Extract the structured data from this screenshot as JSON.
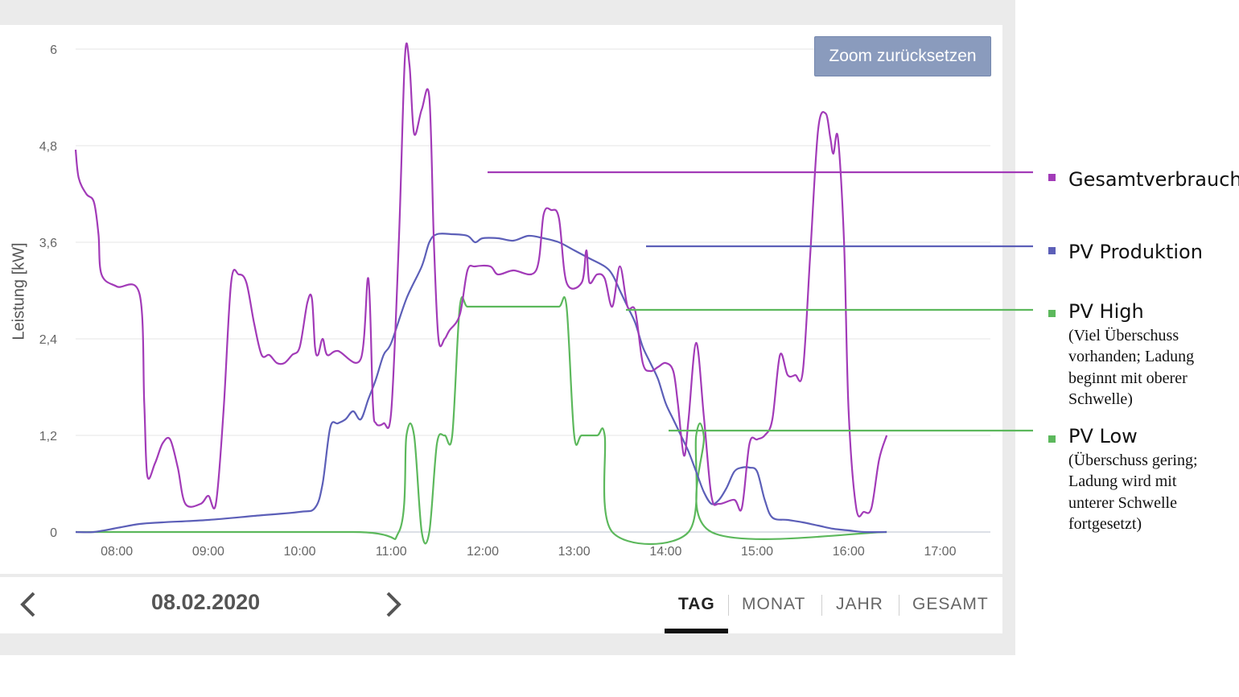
{
  "chart_data": {
    "type": "line",
    "ylabel": "Leistung [kW]",
    "xlabel": "",
    "ylim": [
      0,
      6
    ],
    "xlim": [
      "07:33",
      "17:33"
    ],
    "y_ticks": [
      "0",
      "1,2",
      "2,4",
      "3,6",
      "4,8",
      "6"
    ],
    "y_tick_values": [
      0,
      1.2,
      2.4,
      3.6,
      4.8,
      6.0
    ],
    "x_ticks": [
      "08:00",
      "09:00",
      "10:00",
      "11:00",
      "12:00",
      "13:00",
      "14:00",
      "15:00",
      "16:00",
      "17:00"
    ],
    "grid": true,
    "series": [
      {
        "name": "Gesamtverbrauch",
        "color": "#a23bb8",
        "points": [
          [
            "07:33",
            4.75
          ],
          [
            "07:35",
            4.4
          ],
          [
            "07:40",
            4.2
          ],
          [
            "07:45",
            4.1
          ],
          [
            "07:48",
            3.7
          ],
          [
            "07:50",
            3.2
          ],
          [
            "08:00",
            3.05
          ],
          [
            "08:15",
            2.95
          ],
          [
            "08:18",
            1.6
          ],
          [
            "08:20",
            0.7
          ],
          [
            "08:25",
            0.85
          ],
          [
            "08:30",
            1.1
          ],
          [
            "08:35",
            1.15
          ],
          [
            "08:40",
            0.8
          ],
          [
            "08:45",
            0.35
          ],
          [
            "08:55",
            0.35
          ],
          [
            "09:00",
            0.45
          ],
          [
            "09:05",
            0.35
          ],
          [
            "09:10",
            1.5
          ],
          [
            "09:15",
            3.1
          ],
          [
            "09:20",
            3.2
          ],
          [
            "09:25",
            3.1
          ],
          [
            "09:30",
            2.6
          ],
          [
            "09:35",
            2.2
          ],
          [
            "09:40",
            2.2
          ],
          [
            "09:45",
            2.1
          ],
          [
            "09:50",
            2.1
          ],
          [
            "09:55",
            2.2
          ],
          [
            "10:00",
            2.3
          ],
          [
            "10:05",
            2.85
          ],
          [
            "10:08",
            2.9
          ],
          [
            "10:10",
            2.3
          ],
          [
            "10:12",
            2.2
          ],
          [
            "10:15",
            2.4
          ],
          [
            "10:18",
            2.2
          ],
          [
            "10:25",
            2.25
          ],
          [
            "10:40",
            2.15
          ],
          [
            "10:45",
            3.15
          ],
          [
            "10:48",
            1.6
          ],
          [
            "10:50",
            1.35
          ],
          [
            "10:55",
            1.35
          ],
          [
            "11:00",
            1.5
          ],
          [
            "11:05",
            3.6
          ],
          [
            "11:09",
            5.9
          ],
          [
            "11:12",
            5.8
          ],
          [
            "11:15",
            4.95
          ],
          [
            "11:20",
            5.25
          ],
          [
            "11:25",
            5.4
          ],
          [
            "11:28",
            3.6
          ],
          [
            "11:31",
            2.4
          ],
          [
            "11:35",
            2.4
          ],
          [
            "11:38",
            2.5
          ],
          [
            "11:45",
            2.7
          ],
          [
            "11:50",
            3.25
          ],
          [
            "11:55",
            3.3
          ],
          [
            "12:05",
            3.3
          ],
          [
            "12:10",
            3.2
          ],
          [
            "12:20",
            3.25
          ],
          [
            "12:35",
            3.25
          ],
          [
            "12:40",
            3.95
          ],
          [
            "12:45",
            4.0
          ],
          [
            "12:50",
            3.9
          ],
          [
            "12:55",
            3.1
          ],
          [
            "13:05",
            3.1
          ],
          [
            "13:08",
            3.5
          ],
          [
            "13:10",
            3.1
          ],
          [
            "13:15",
            3.2
          ],
          [
            "13:20",
            3.15
          ],
          [
            "13:25",
            2.8
          ],
          [
            "13:30",
            3.3
          ],
          [
            "13:35",
            2.8
          ],
          [
            "13:40",
            2.75
          ],
          [
            "13:45",
            2.1
          ],
          [
            "13:50",
            2.0
          ],
          [
            "13:55",
            2.05
          ],
          [
            "14:00",
            2.1
          ],
          [
            "14:05",
            2.0
          ],
          [
            "14:08",
            1.6
          ],
          [
            "14:12",
            0.95
          ],
          [
            "14:15",
            1.4
          ],
          [
            "14:20",
            2.35
          ],
          [
            "14:25",
            1.45
          ],
          [
            "14:30",
            0.45
          ],
          [
            "14:35",
            0.35
          ],
          [
            "14:45",
            0.4
          ],
          [
            "14:50",
            0.3
          ],
          [
            "14:55",
            1.1
          ],
          [
            "15:00",
            1.15
          ],
          [
            "15:05",
            1.2
          ],
          [
            "15:10",
            1.4
          ],
          [
            "15:15",
            2.2
          ],
          [
            "15:20",
            1.95
          ],
          [
            "15:25",
            1.95
          ],
          [
            "15:30",
            2.0
          ],
          [
            "15:35",
            3.5
          ],
          [
            "15:40",
            5.0
          ],
          [
            "15:45",
            5.2
          ],
          [
            "15:48",
            4.9
          ],
          [
            "15:50",
            4.7
          ],
          [
            "15:53",
            4.9
          ],
          [
            "15:57",
            3.6
          ],
          [
            "16:00",
            1.5
          ],
          [
            "16:05",
            0.3
          ],
          [
            "16:10",
            0.25
          ],
          [
            "16:15",
            0.3
          ],
          [
            "16:20",
            0.9
          ],
          [
            "16:25",
            1.2
          ]
        ]
      },
      {
        "name": "PV Produktion",
        "color": "#5c5fb8",
        "points": [
          [
            "07:33",
            0
          ],
          [
            "07:45",
            0
          ],
          [
            "08:00",
            0.05
          ],
          [
            "08:15",
            0.1
          ],
          [
            "08:30",
            0.12
          ],
          [
            "09:00",
            0.15
          ],
          [
            "09:30",
            0.2
          ],
          [
            "10:00",
            0.25
          ],
          [
            "10:10",
            0.3
          ],
          [
            "10:15",
            0.6
          ],
          [
            "10:20",
            1.3
          ],
          [
            "10:25",
            1.35
          ],
          [
            "10:30",
            1.4
          ],
          [
            "10:35",
            1.5
          ],
          [
            "10:40",
            1.4
          ],
          [
            "10:45",
            1.65
          ],
          [
            "10:50",
            1.9
          ],
          [
            "10:55",
            2.2
          ],
          [
            "11:00",
            2.35
          ],
          [
            "11:10",
            2.9
          ],
          [
            "11:20",
            3.3
          ],
          [
            "11:25",
            3.6
          ],
          [
            "11:30",
            3.7
          ],
          [
            "11:40",
            3.7
          ],
          [
            "11:50",
            3.68
          ],
          [
            "11:55",
            3.6
          ],
          [
            "12:00",
            3.65
          ],
          [
            "12:10",
            3.65
          ],
          [
            "12:20",
            3.62
          ],
          [
            "12:30",
            3.68
          ],
          [
            "12:40",
            3.65
          ],
          [
            "12:50",
            3.6
          ],
          [
            "13:00",
            3.5
          ],
          [
            "13:10",
            3.4
          ],
          [
            "13:20",
            3.3
          ],
          [
            "13:25",
            3.2
          ],
          [
            "13:30",
            3.0
          ],
          [
            "13:35",
            2.8
          ],
          [
            "13:40",
            2.6
          ],
          [
            "13:45",
            2.3
          ],
          [
            "13:50",
            2.1
          ],
          [
            "13:55",
            1.9
          ],
          [
            "14:00",
            1.6
          ],
          [
            "14:05",
            1.4
          ],
          [
            "14:10",
            1.2
          ],
          [
            "14:15",
            1.0
          ],
          [
            "14:20",
            0.75
          ],
          [
            "14:25",
            0.5
          ],
          [
            "14:30",
            0.35
          ],
          [
            "14:35",
            0.4
          ],
          [
            "14:40",
            0.55
          ],
          [
            "14:45",
            0.75
          ],
          [
            "14:50",
            0.8
          ],
          [
            "14:55",
            0.8
          ],
          [
            "15:00",
            0.75
          ],
          [
            "15:05",
            0.4
          ],
          [
            "15:10",
            0.18
          ],
          [
            "15:20",
            0.15
          ],
          [
            "15:30",
            0.12
          ],
          [
            "15:40",
            0.08
          ],
          [
            "15:50",
            0.04
          ],
          [
            "16:00",
            0.02
          ],
          [
            "16:10",
            0
          ],
          [
            "16:25",
            0
          ]
        ]
      },
      {
        "name": "PV High",
        "color": "#5cb85c",
        "points": [
          [
            "07:33",
            0
          ],
          [
            "10:35",
            0
          ],
          [
            "11:05",
            0
          ],
          [
            "11:10",
            1.2
          ],
          [
            "11:15",
            1.2
          ],
          [
            "11:20",
            0
          ],
          [
            "11:25",
            0
          ],
          [
            "11:30",
            1.1
          ],
          [
            "11:35",
            1.2
          ],
          [
            "11:40",
            1.2
          ],
          [
            "11:45",
            2.8
          ],
          [
            "11:50",
            2.8
          ],
          [
            "12:00",
            2.8
          ],
          [
            "12:10",
            2.8
          ],
          [
            "12:20",
            2.8
          ],
          [
            "12:35",
            2.8
          ],
          [
            "12:40",
            2.8
          ],
          [
            "12:50",
            2.8
          ],
          [
            "12:55",
            2.8
          ],
          [
            "13:00",
            1.2
          ],
          [
            "13:05",
            1.2
          ],
          [
            "13:15",
            1.2
          ],
          [
            "13:20",
            1.2
          ],
          [
            "13:25",
            0
          ],
          [
            "14:15",
            0
          ],
          [
            "14:20",
            1.2
          ],
          [
            "14:25",
            1.2
          ],
          [
            "14:30",
            0
          ],
          [
            "16:25",
            0
          ]
        ]
      }
    ],
    "annotations": [
      {
        "series": "Gesamtverbrauch",
        "title": "Gesamtverbrauch",
        "description": ""
      },
      {
        "series": "PV Produktion",
        "title": "PV Produktion",
        "description": ""
      },
      {
        "series": "PV High",
        "title": "PV High",
        "description": "(Viel Überschuss vorhanden; Ladung beginnt mit oberer Schwelle)"
      },
      {
        "series": "PV High",
        "title": "PV Low",
        "description": "(Überschuss gering; Ladung wird mit unterer Schwelle fortgesetzt)"
      }
    ]
  },
  "toolbar": {
    "zoom_reset_label": "Zoom zurücksetzen"
  },
  "footer": {
    "date": "08.02.2020",
    "prev_icon": "chevron-left-icon",
    "next_icon": "chevron-right-icon",
    "tabs": [
      {
        "label": "TAG",
        "active": true
      },
      {
        "label": "MONAT",
        "active": false
      },
      {
        "label": "JAHR",
        "active": false
      },
      {
        "label": "GESAMT",
        "active": false
      }
    ]
  },
  "legend": {
    "items": [
      {
        "title": "Gesamtverbrauch",
        "lines": [],
        "color": "#a23bb8"
      },
      {
        "title": "PV Produktion",
        "lines": [],
        "color": "#5c5fb8"
      },
      {
        "title": "PV High",
        "lines": [
          "(Viel Überschuss",
          "vorhanden; Ladung",
          "beginnt mit oberer",
          "Schwelle)"
        ],
        "color": "#5cb85c"
      },
      {
        "title": "PV Low",
        "lines": [
          "(Überschuss gering;",
          "Ladung wird mit",
          "unterer Schwelle",
          "fortgesetzt)"
        ],
        "color": "#5cb85c"
      }
    ]
  }
}
